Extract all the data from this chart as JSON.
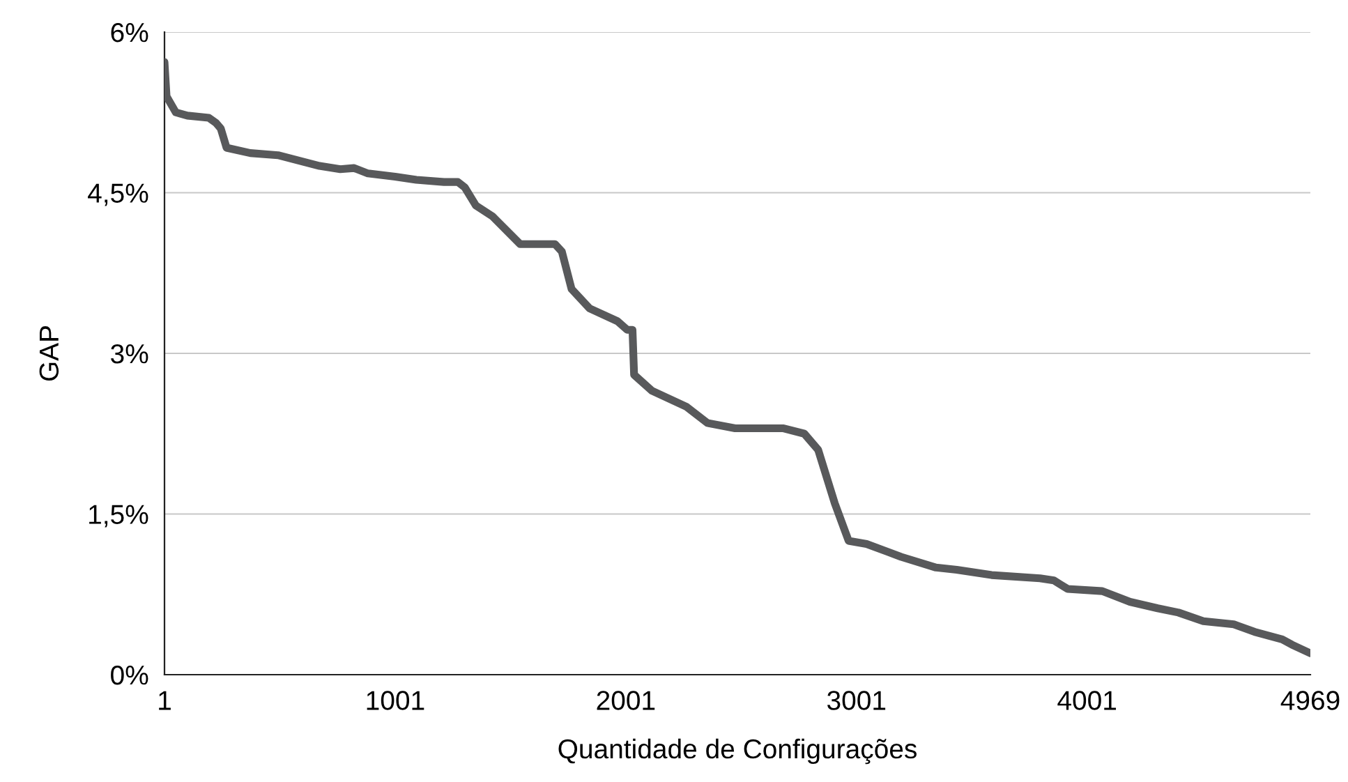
{
  "chart_data": {
    "type": "line",
    "xlabel": "Quantidade de Configurações",
    "ylabel": "GAP",
    "x": [
      1,
      10,
      50,
      100,
      193,
      225,
      245,
      270,
      373,
      493,
      673,
      763,
      823,
      883,
      1001,
      1093,
      1213,
      1273,
      1303,
      1351,
      1423,
      1543,
      1694,
      1724,
      1766,
      1844,
      1965,
      2007,
      2030,
      2037,
      2115,
      2265,
      2355,
      2475,
      2685,
      2775,
      2835,
      2907,
      2967,
      3045,
      3195,
      3346,
      3436,
      3587,
      3797,
      3857,
      3917,
      4067,
      4187,
      4307,
      4397,
      4505,
      4637,
      4727,
      4847,
      4889,
      4969
    ],
    "series": [
      {
        "color": "#58595b",
        "values": [
          5.72,
          5.4,
          5.25,
          5.22,
          5.2,
          5.15,
          5.1,
          4.92,
          4.87,
          4.85,
          4.75,
          4.72,
          4.73,
          4.68,
          4.65,
          4.62,
          4.6,
          4.6,
          4.55,
          4.38,
          4.28,
          4.02,
          4.02,
          3.95,
          3.6,
          3.42,
          3.3,
          3.22,
          3.22,
          2.8,
          2.65,
          2.5,
          2.35,
          2.3,
          2.3,
          2.25,
          2.1,
          1.6,
          1.25,
          1.22,
          1.1,
          1.0,
          0.98,
          0.93,
          0.9,
          0.88,
          0.8,
          0.78,
          0.68,
          0.62,
          0.58,
          0.5,
          0.47,
          0.4,
          0.33,
          0.28,
          0.2
        ]
      }
    ],
    "xlim": [
      1,
      4969
    ],
    "xticks": [
      1,
      1001,
      2001,
      3001,
      4001,
      4969
    ],
    "ylim": [
      0,
      6
    ],
    "yticks": [
      {
        "value": 0,
        "label": "0%"
      },
      {
        "value": 1.5,
        "label": "1,5%"
      },
      {
        "value": 3,
        "label": "3%"
      },
      {
        "value": 4.5,
        "label": "4,5%"
      },
      {
        "value": 6,
        "label": "6%"
      }
    ],
    "grid": "y",
    "line_style": "solid",
    "marker": "none"
  }
}
